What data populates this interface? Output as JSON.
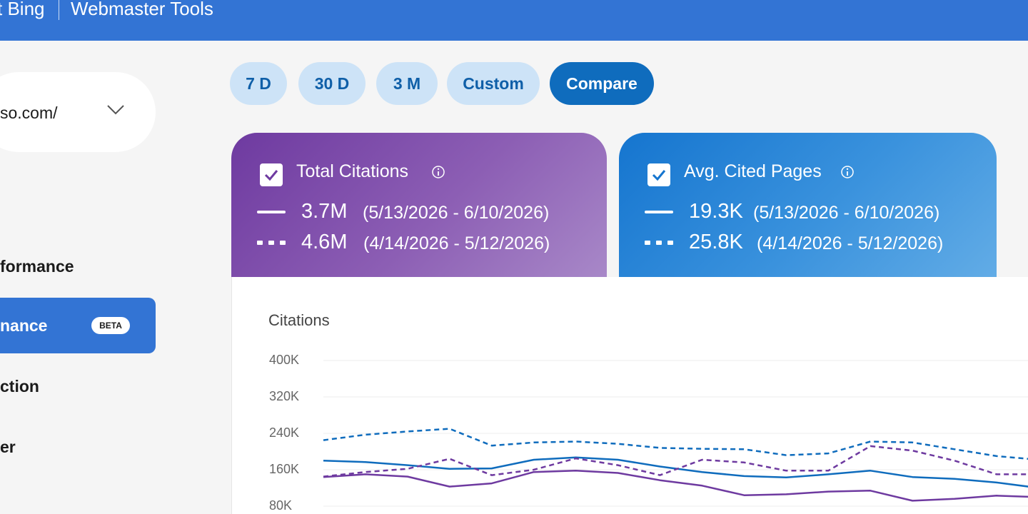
{
  "header": {
    "brand": "t Bing",
    "product": "Webmaster Tools"
  },
  "site_selector": {
    "value": "so.com/"
  },
  "sidebar": {
    "items": [
      {
        "label": "formance",
        "active": false
      },
      {
        "label": "nance",
        "active": true,
        "badge": "BETA"
      },
      {
        "label": "ction",
        "active": false
      },
      {
        "label": "er",
        "active": false
      }
    ]
  },
  "date_ranges": [
    {
      "label": "7 D",
      "active": false
    },
    {
      "label": "30 D",
      "active": false
    },
    {
      "label": "3 M",
      "active": false
    },
    {
      "label": "Custom",
      "active": false
    },
    {
      "label": "Compare",
      "active": true
    }
  ],
  "cards": [
    {
      "title": "Total Citations",
      "checked": true,
      "color": "#6e3aa0",
      "current": {
        "value": "3.7M",
        "range": "(5/13/2026 - 6/10/2026)"
      },
      "previous": {
        "value": "4.6M",
        "range": "(4/14/2026 - 5/12/2026)"
      }
    },
    {
      "title": "Avg. Cited Pages",
      "checked": true,
      "color": "#1575cf",
      "current": {
        "value": "19.3K",
        "range": "(5/13/2026 - 6/10/2026)"
      },
      "previous": {
        "value": "25.8K",
        "range": "(4/14/2026 - 5/12/2026)"
      }
    }
  ],
  "chart_data": {
    "type": "line",
    "title": "Citations",
    "ylim": [
      80000,
      400000
    ],
    "yticks": [
      "400K",
      "320K",
      "240K",
      "160K",
      "80K"
    ],
    "ytick_values": [
      400000,
      320000,
      240000,
      160000,
      80000
    ],
    "grid": true,
    "series": [
      {
        "style": "solid",
        "color": "#0f6cbd",
        "values": [
          180000,
          177000,
          170000,
          162000,
          163000,
          182000,
          187000,
          182000,
          167000,
          155000,
          146000,
          143000,
          150000,
          158000,
          144000,
          140000,
          132000,
          120000
        ]
      },
      {
        "style": "dashed",
        "color": "#0f6cbd",
        "values": [
          225000,
          237000,
          244000,
          250000,
          213000,
          220000,
          222000,
          217000,
          208000,
          206000,
          205000,
          192000,
          196000,
          222000,
          220000,
          205000,
          190000,
          182000
        ]
      },
      {
        "style": "solid",
        "color": "#6e3aa0",
        "values": [
          144000,
          150000,
          145000,
          123000,
          130000,
          155000,
          158000,
          153000,
          137000,
          125000,
          104000,
          106000,
          112000,
          114000,
          92000,
          96000,
          103000,
          100000
        ]
      },
      {
        "style": "dashed",
        "color": "#6e3aa0",
        "values": [
          145000,
          155000,
          162000,
          184000,
          148000,
          160000,
          185000,
          170000,
          148000,
          182000,
          176000,
          158000,
          158000,
          212000,
          202000,
          180000,
          150000,
          150000
        ]
      }
    ]
  }
}
